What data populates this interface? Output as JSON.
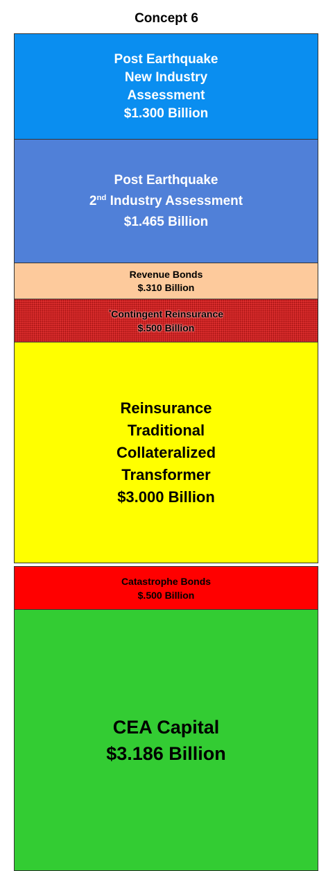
{
  "title": "Concept 6",
  "layers": [
    {
      "lines": [
        [
          "Post Earthquake"
        ],
        [
          "New Industry"
        ],
        [
          "Assessment"
        ],
        [
          "$1.300 Billion"
        ]
      ]
    },
    {
      "lines": [
        [
          "Post Earthquake"
        ],
        [
          "2",
          {
            "sup": "nd"
          },
          " Industry Assessment"
        ],
        [
          "$1.465 Billion"
        ]
      ]
    },
    {
      "lines": [
        [
          "Revenue Bonds"
        ],
        [
          "$.310 Billion"
        ]
      ]
    },
    {
      "lines": [
        [
          {
            "sup": "*"
          },
          "Contingent Reinsurance"
        ],
        [
          "$.500 Billion"
        ]
      ]
    },
    {
      "lines": [
        [
          "Reinsurance"
        ],
        [
          "Traditional"
        ],
        [
          "Collateralized"
        ],
        [
          "Transformer"
        ],
        [
          "$3.000 Billion"
        ]
      ]
    },
    {
      "lines": [
        [
          "Catastrophe Bonds"
        ],
        [
          "$.500 Billion"
        ]
      ]
    },
    {
      "lines": [
        [
          "CEA Capital"
        ],
        [
          "$3.186 Billion"
        ]
      ]
    }
  ]
}
